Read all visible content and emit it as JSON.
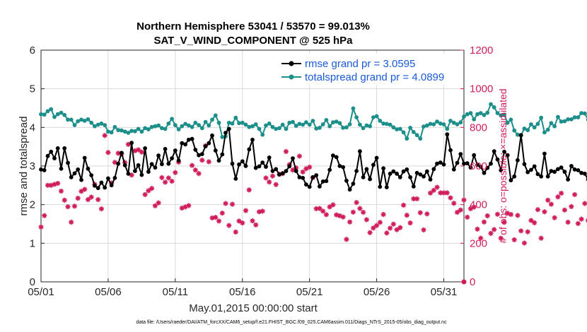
{
  "title_line1": "Northern Hemisphere 53041 / 53570 = 99.013%",
  "title_line2": "SAT_V_WIND_COMPONENT @ 525 hPa",
  "footnote": "data file: /Users/raeder/DAI/ATM_forcXX/CAM6_setup/f.e21.FHIST_BGC.f09_025.CAM6assim.011/Diags_NTrS_2015-05/obs_diag_output.nc",
  "colors": {
    "rmse": "#000000",
    "spread": "#1c8f8a",
    "obs": "#d01c5b",
    "legend_text": "#1a5ad8"
  },
  "chart_data": {
    "type": "line",
    "title": "Northern Hemisphere 53041 / 53570 = 99.013%",
    "subtitle": "SAT_V_WIND_COMPONENT @ 525 hPa",
    "xlabel": "May.01,2015 00:00:00 start",
    "ylabel": "rmse and totalspread",
    "y2label": "# of obs: o=possible; ×=assimilated",
    "xlim": [
      0,
      31.5
    ],
    "ylim": [
      0,
      6
    ],
    "y2lim": [
      0,
      1200
    ],
    "xticks": [
      0,
      5,
      10,
      15,
      20,
      25,
      30
    ],
    "xtick_labels": [
      "05/01",
      "05/06",
      "05/11",
      "05/16",
      "05/21",
      "05/26",
      "05/31"
    ],
    "yticks": [
      0,
      1,
      2,
      3,
      4,
      5,
      6
    ],
    "ytick_labels": [
      "0",
      "1",
      "2",
      "3",
      "4",
      "5",
      "6"
    ],
    "y2ticks": [
      0,
      200,
      400,
      600,
      800,
      1000,
      1200
    ],
    "y2tick_labels": [
      "0",
      "200",
      "400",
      "600",
      "800",
      "1000",
      "1200"
    ],
    "grid": true,
    "legend_position": "top-right",
    "x_step_days": 0.25,
    "x_start": 0,
    "series": [
      {
        "name": "rmse grand pr = 3.0595",
        "axis": "left",
        "marker": "dot",
        "values": [
          2.91,
          2.89,
          3.26,
          3.37,
          3.2,
          3.46,
          2.93,
          3.46,
          3.08,
          2.71,
          2.81,
          2.91,
          2.64,
          3.21,
          2.93,
          2.76,
          2.49,
          2.43,
          2.57,
          2.44,
          2.68,
          2.5,
          2.69,
          3.06,
          3.34,
          3.02,
          2.8,
          3.6,
          2.87,
          3.02,
          2.77,
          3.46,
          2.85,
          3.05,
          2.96,
          3.27,
          3.05,
          3.44,
          3.06,
          3.2,
          3.4,
          3.14,
          3.59,
          3.56,
          3.68,
          3.7,
          3.42,
          3.28,
          3.31,
          3.51,
          3.59,
          3.79,
          3.4,
          3.14,
          3.3,
          3.86,
          3.96,
          3.06,
          2.67,
          3.04,
          3.12,
          3.0,
          3.43,
          3.68,
          2.95,
          2.99,
          3.09,
          2.98,
          3.22,
          2.87,
          2.92,
          2.78,
          2.81,
          2.87,
          2.99,
          3.2,
          2.87,
          2.71,
          2.69,
          2.52,
          2.46,
          2.71,
          2.76,
          2.47,
          2.6,
          2.61,
          2.9,
          3.27,
          3.23,
          3.0,
          2.97,
          2.62,
          2.39,
          2.54,
          2.87,
          3.38,
          2.71,
          2.92,
          2.66,
          3.03,
          3.21,
          2.46,
          2.94,
          2.45,
          2.8,
          2.86,
          2.8,
          2.71,
          2.86,
          2.91,
          2.71,
          2.47,
          2.82,
          2.78,
          2.73,
          2.86,
          2.65,
          2.92,
          3.06,
          3.09,
          3.04,
          3.82,
          3.41,
          2.91,
          3.08,
          3.31,
          3.06,
          3.07,
          2.96,
          3.28,
          3.03,
          2.98,
          2.82,
          2.95,
          3.06,
          3.38,
          3.17,
          2.89,
          3.37,
          3.28,
          2.63,
          2.73,
          3.15,
          3.8,
          3.05,
          2.84,
          2.9,
          2.99,
          2.79,
          2.73,
          3.32,
          2.73,
          2.87,
          2.85,
          2.92,
          2.96,
          2.85,
          2.65,
          3.0,
          2.91,
          2.89,
          2.82,
          2.8,
          2.65,
          2.89,
          2.84,
          2.92,
          2.73,
          2.54,
          2.71,
          2.73,
          3.2
        ]
      },
      {
        "name": "totalspread grand pr = 4.0899",
        "axis": "left",
        "marker": "dot",
        "values": [
          4.34,
          4.33,
          4.42,
          4.47,
          4.27,
          4.34,
          4.38,
          4.32,
          4.2,
          4.2,
          4.06,
          4.16,
          4.2,
          4.17,
          4.21,
          4.12,
          4.03,
          4.07,
          4.1,
          4.06,
          3.89,
          3.87,
          4.01,
          3.93,
          3.92,
          3.89,
          3.86,
          3.91,
          3.9,
          3.96,
          3.89,
          3.98,
          3.95,
          4.01,
          4.03,
          4.05,
          3.98,
          3.96,
          4.1,
          4.22,
          4.06,
          3.95,
          4.03,
          4.09,
          4.05,
          4.01,
          4.12,
          4.06,
          3.98,
          4.14,
          4.05,
          4.2,
          4.31,
          4.12,
          3.75,
          3.77,
          4.12,
          4.1,
          4.25,
          4.11,
          4.12,
          4.07,
          4.01,
          4.03,
          4.08,
          3.96,
          3.81,
          4.05,
          4.1,
          4.01,
          3.96,
          3.98,
          4.07,
          3.96,
          4.12,
          4.14,
          4.04,
          4.09,
          4.07,
          4.13,
          4.07,
          4.17,
          3.97,
          3.99,
          4.08,
          4.19,
          4.03,
          4.13,
          4.15,
          4.11,
          3.99,
          4.0,
          4.08,
          4.49,
          4.26,
          4.07,
          3.98,
          4.05,
          4.03,
          4.26,
          4.29,
          4.17,
          4.1,
          4.09,
          4.07,
          4.0,
          3.95,
          3.96,
          3.87,
          3.71,
          3.99,
          3.88,
          3.8,
          3.71,
          4.02,
          4.05,
          4.09,
          4.08,
          4.15,
          4.1,
          4.08,
          3.96,
          4.17,
          4.12,
          4.08,
          4.13,
          4.28,
          4.34,
          4.37,
          4.21,
          4.34,
          4.37,
          4.32,
          4.38,
          4.6,
          4.52,
          4.37,
          4.31,
          4.33,
          4.12,
          4.2,
          3.92,
          3.81,
          3.79,
          3.97,
          3.93,
          4.08,
          4.0,
          4.09,
          4.25,
          3.87,
          3.94,
          4.11,
          4.03,
          4.27,
          4.15,
          4.16,
          4.21,
          4.21,
          4.26,
          4.26,
          4.37,
          4.36,
          4.2,
          4.21,
          4.13,
          4.16,
          4.26,
          4.27,
          4.26,
          4.33,
          4.44,
          4.28
        ]
      },
      {
        "name": "# of obs possible / assimilated",
        "axis": "right",
        "marker": "star",
        "values": [
          284,
          343,
          500,
          500,
          505,
          510,
          470,
          423,
          389,
          309,
          392,
          433,
          469,
          479,
          426,
          439,
          505,
          426,
          378,
          758,
          670,
          512,
          619,
          666,
          663,
          618,
          712,
          553,
          679,
          684,
          672,
          452,
          472,
          484,
          394,
          409,
          540,
          516,
          538,
          521,
          566,
          620,
          382,
          388,
          395,
          603,
          579,
          561,
          630,
          705,
          622,
          331,
          334,
          315,
          356,
          406,
          292,
          402,
          258,
          315,
          305,
          369,
          476,
          316,
          295,
          363,
          366,
          538,
          517,
          548,
          504,
          557,
          561,
          675,
          607,
          579,
          590,
          651,
          569,
          586,
          594,
          540,
          379,
          380,
          366,
          348,
          388,
          399,
          347,
          342,
          336,
          220,
          310,
          361,
          411,
          380,
          360,
          322,
          255,
          279,
          292,
          308,
          349,
          253,
          278,
          299,
          270,
          281,
          397,
          345,
          305,
          430,
          430,
          358,
          269,
          352,
          460,
          474,
          490,
          461,
          461,
          461,
          435,
          407,
          360,
          372,
          424,
          335,
          379,
          387,
          273,
          226,
          310,
          342,
          251,
          271,
          350,
          226,
          308,
          355,
          349,
          218,
          344,
          264,
          201,
          259,
          318,
          306,
          374,
          226,
          363,
          423,
          402,
          332,
          440,
          459,
          372,
          309,
          390,
          452,
          302,
          325,
          406,
          318,
          441,
          434,
          366,
          356,
          309,
          258
        ]
      }
    ]
  }
}
